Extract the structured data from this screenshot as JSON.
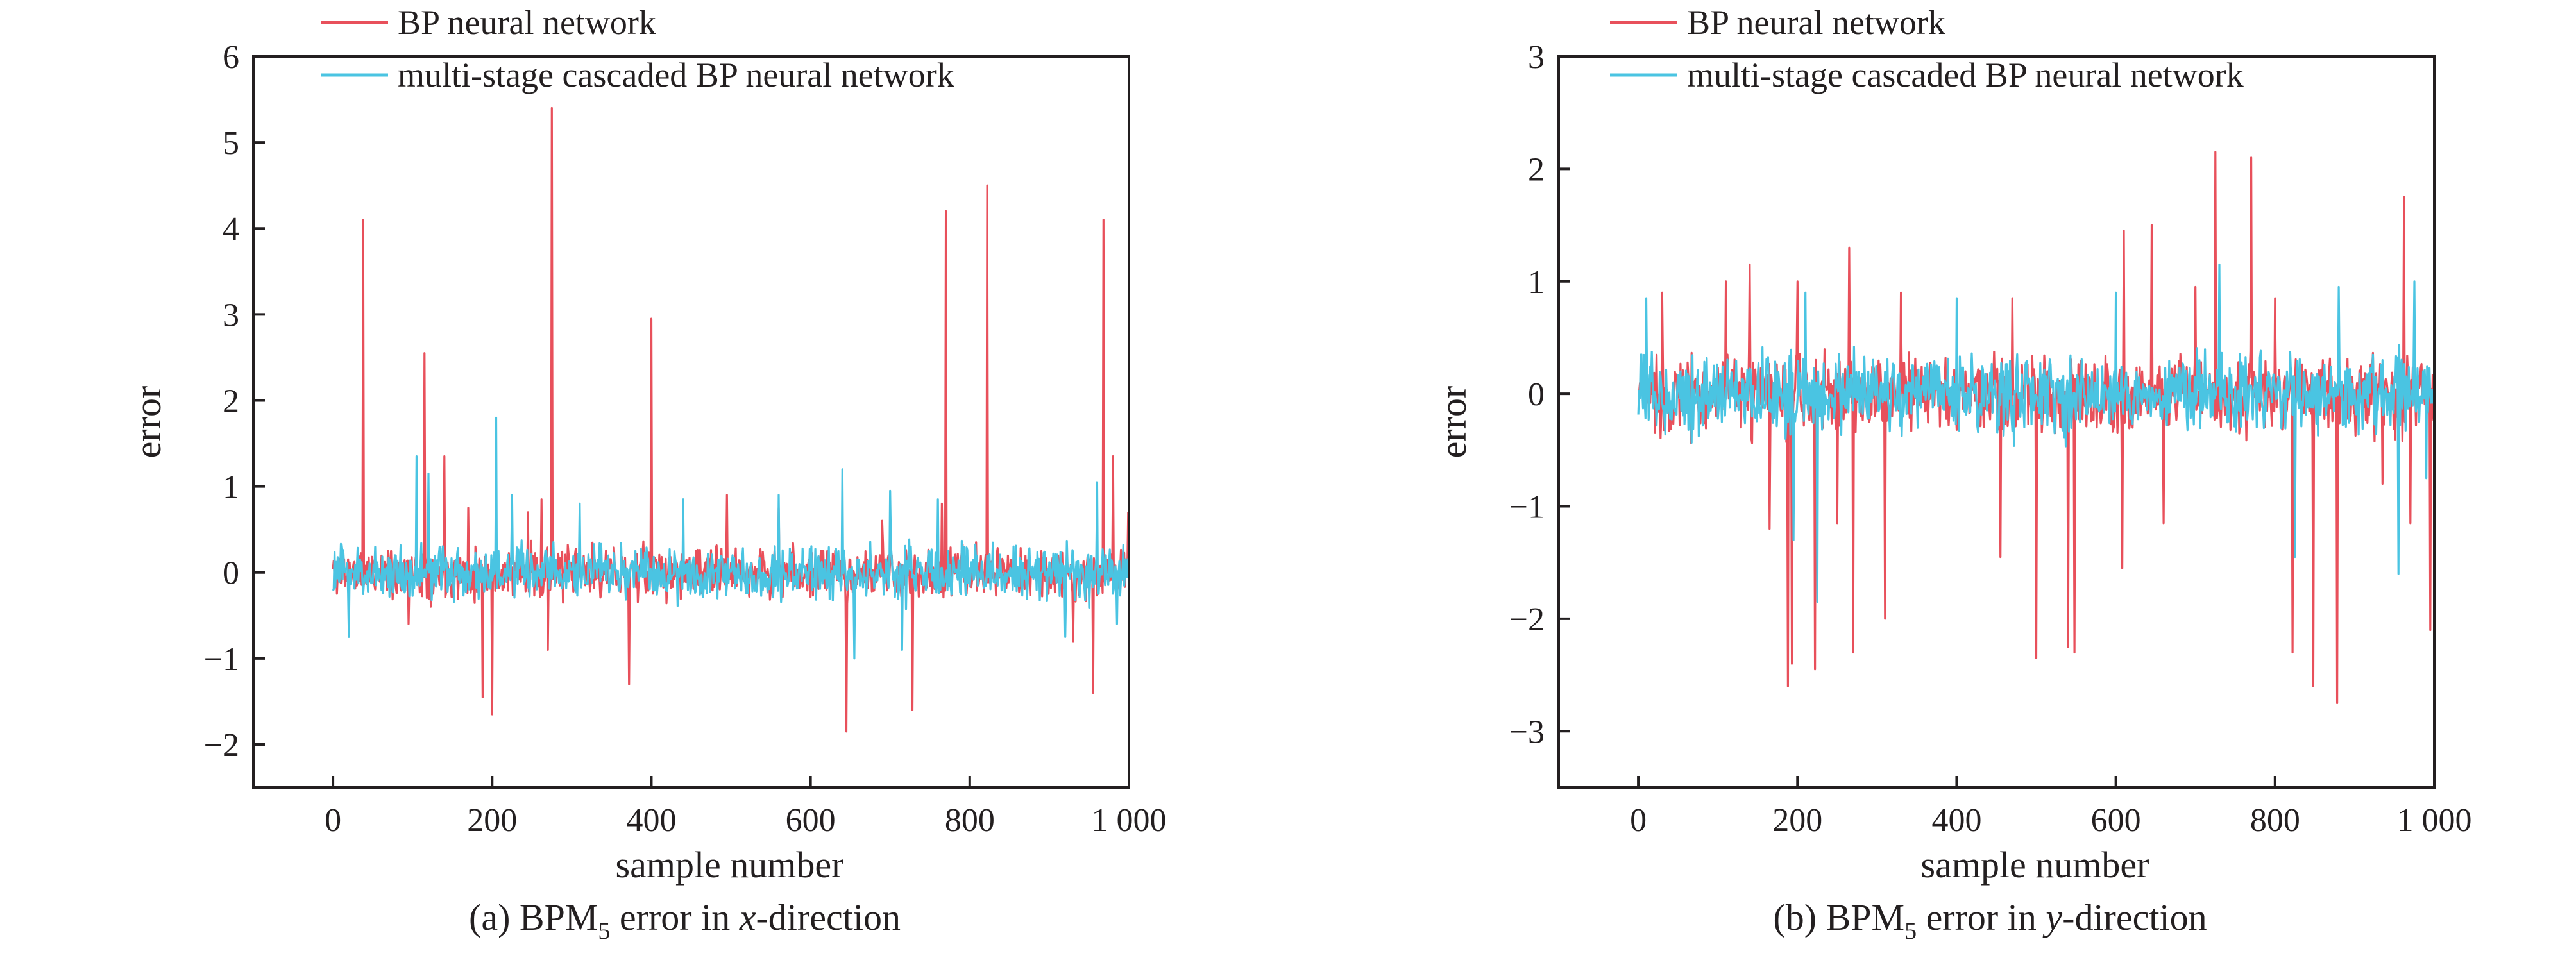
{
  "colors": {
    "bp": "#e8505b",
    "cascade": "#4ac4e2",
    "axis": "#231f20"
  },
  "chart_data": [
    {
      "type": "line",
      "caption": {
        "prefix": "(a) BPM",
        "sub": "5",
        "middle": " error in ",
        "italic": "x",
        "suffix": "-direction"
      },
      "xlabel": "sample number",
      "ylabel": "error",
      "xlim": [
        -100,
        1000
      ],
      "ylim": [
        -2.5,
        6
      ],
      "xticks": [
        0,
        200,
        400,
        600,
        800,
        1000
      ],
      "xtick_labels": [
        "0",
        "200",
        "400",
        "600",
        "800",
        "1 000"
      ],
      "yticks": [
        -2,
        -1,
        0,
        1,
        2,
        3,
        4,
        5,
        6
      ],
      "ytick_labels": [
        "−2",
        "−1",
        "0",
        "1",
        "2",
        "3",
        "4",
        "5",
        "6"
      ],
      "legend": {
        "position": "top",
        "entries": [
          "BP neural network",
          "multi-stage cascaded BP neural network"
        ]
      },
      "series": [
        {
          "name": "BP neural network",
          "color": "#e8505b",
          "n_samples": 1000,
          "noise_amplitude": 0.42,
          "seed": 11,
          "spikes": [
            {
              "x": 38,
              "y": 4.1
            },
            {
              "x": 95,
              "y": -0.6
            },
            {
              "x": 115,
              "y": 2.55
            },
            {
              "x": 140,
              "y": 1.35
            },
            {
              "x": 170,
              "y": 0.75
            },
            {
              "x": 188,
              "y": -1.45
            },
            {
              "x": 200,
              "y": -1.65
            },
            {
              "x": 245,
              "y": 0.7
            },
            {
              "x": 262,
              "y": 0.85
            },
            {
              "x": 270,
              "y": -0.9
            },
            {
              "x": 275,
              "y": 5.4
            },
            {
              "x": 372,
              "y": -1.3
            },
            {
              "x": 400,
              "y": 2.95
            },
            {
              "x": 495,
              "y": 0.9
            },
            {
              "x": 560,
              "y": 0.75
            },
            {
              "x": 645,
              "y": -1.85
            },
            {
              "x": 690,
              "y": 0.6
            },
            {
              "x": 728,
              "y": -1.6
            },
            {
              "x": 765,
              "y": 0.8
            },
            {
              "x": 770,
              "y": 4.2
            },
            {
              "x": 822,
              "y": 4.5
            },
            {
              "x": 930,
              "y": -0.8
            },
            {
              "x": 955,
              "y": -1.4
            },
            {
              "x": 968,
              "y": 4.1
            },
            {
              "x": 980,
              "y": 1.35
            },
            {
              "x": 999,
              "y": 0.7
            }
          ]
        },
        {
          "name": "multi-stage cascaded BP neural network",
          "color": "#4ac4e2",
          "n_samples": 1000,
          "noise_amplitude": 0.45,
          "seed": 23,
          "spikes": [
            {
              "x": 20,
              "y": -0.75
            },
            {
              "x": 105,
              "y": 1.35
            },
            {
              "x": 120,
              "y": 1.15
            },
            {
              "x": 205,
              "y": 1.8
            },
            {
              "x": 225,
              "y": 0.9
            },
            {
              "x": 310,
              "y": 0.8
            },
            {
              "x": 440,
              "y": 0.85
            },
            {
              "x": 560,
              "y": 0.9
            },
            {
              "x": 640,
              "y": 1.2
            },
            {
              "x": 655,
              "y": -1.0
            },
            {
              "x": 700,
              "y": 0.95
            },
            {
              "x": 715,
              "y": -0.9
            },
            {
              "x": 760,
              "y": 0.85
            },
            {
              "x": 920,
              "y": -0.75
            },
            {
              "x": 960,
              "y": 1.05
            },
            {
              "x": 985,
              "y": -0.6
            }
          ]
        }
      ]
    },
    {
      "type": "line",
      "caption": {
        "prefix": "(b) BPM",
        "sub": "5",
        "middle": " error in ",
        "italic": "y",
        "suffix": "-direction"
      },
      "xlabel": "sample number",
      "ylabel": "error",
      "xlim": [
        -100,
        1000
      ],
      "ylim": [
        -3.5,
        3
      ],
      "xticks": [
        0,
        200,
        400,
        600,
        800,
        1000
      ],
      "xtick_labels": [
        "0",
        "200",
        "400",
        "600",
        "800",
        "1 000"
      ],
      "yticks": [
        -3,
        -2,
        -1,
        0,
        1,
        2,
        3
      ],
      "ytick_labels": [
        "−3",
        "−2",
        "−1",
        "0",
        "1",
        "2",
        "3"
      ],
      "legend": {
        "position": "top",
        "entries": [
          "BP neural network",
          "multi-stage cascaded BP neural network"
        ]
      },
      "series": [
        {
          "name": "BP neural network",
          "color": "#e8505b",
          "n_samples": 1000,
          "noise_amplitude": 0.5,
          "seed": 37,
          "spikes": [
            {
              "x": 30,
              "y": 0.9
            },
            {
              "x": 110,
              "y": 1.0
            },
            {
              "x": 140,
              "y": 1.15
            },
            {
              "x": 165,
              "y": -1.2
            },
            {
              "x": 188,
              "y": -2.6
            },
            {
              "x": 193,
              "y": -2.4
            },
            {
              "x": 200,
              "y": 1.0
            },
            {
              "x": 222,
              "y": -2.45
            },
            {
              "x": 250,
              "y": -1.15
            },
            {
              "x": 265,
              "y": 1.3
            },
            {
              "x": 270,
              "y": -2.3
            },
            {
              "x": 310,
              "y": -2.0
            },
            {
              "x": 330,
              "y": 0.9
            },
            {
              "x": 455,
              "y": -1.45
            },
            {
              "x": 470,
              "y": 0.85
            },
            {
              "x": 500,
              "y": -2.35
            },
            {
              "x": 540,
              "y": -2.25
            },
            {
              "x": 548,
              "y": -2.3
            },
            {
              "x": 610,
              "y": 1.45
            },
            {
              "x": 608,
              "y": -1.55
            },
            {
              "x": 645,
              "y": 1.5
            },
            {
              "x": 660,
              "y": -1.15
            },
            {
              "x": 700,
              "y": 0.95
            },
            {
              "x": 725,
              "y": 2.15
            },
            {
              "x": 770,
              "y": 2.1
            },
            {
              "x": 800,
              "y": 0.85
            },
            {
              "x": 822,
              "y": -2.3
            },
            {
              "x": 848,
              "y": -2.6
            },
            {
              "x": 878,
              "y": -2.75
            },
            {
              "x": 935,
              "y": -0.8
            },
            {
              "x": 962,
              "y": 1.75
            },
            {
              "x": 970,
              "y": -1.15
            },
            {
              "x": 995,
              "y": -2.1
            }
          ]
        },
        {
          "name": "multi-stage cascaded BP neural network",
          "color": "#4ac4e2",
          "n_samples": 1000,
          "noise_amplitude": 0.5,
          "seed": 53,
          "spikes": [
            {
              "x": 10,
              "y": 0.85
            },
            {
              "x": 195,
              "y": -1.3
            },
            {
              "x": 210,
              "y": 0.9
            },
            {
              "x": 225,
              "y": -1.85
            },
            {
              "x": 400,
              "y": 0.85
            },
            {
              "x": 600,
              "y": 0.9
            },
            {
              "x": 730,
              "y": 1.15
            },
            {
              "x": 825,
              "y": -1.45
            },
            {
              "x": 880,
              "y": 0.95
            },
            {
              "x": 955,
              "y": -1.6
            },
            {
              "x": 975,
              "y": 1.0
            },
            {
              "x": 990,
              "y": -0.75
            }
          ]
        }
      ]
    }
  ]
}
